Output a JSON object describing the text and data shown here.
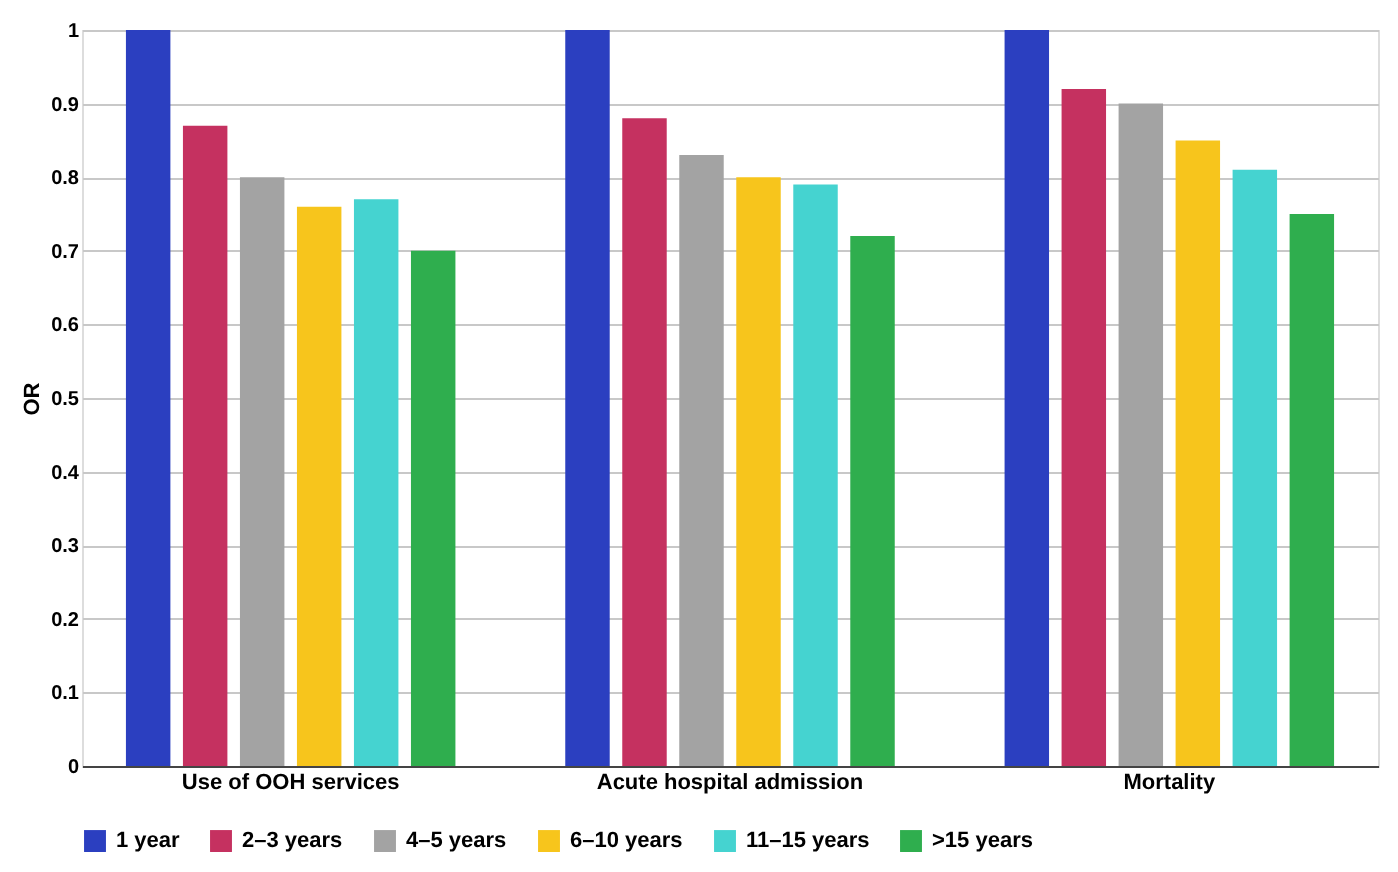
{
  "chart_data": {
    "type": "bar",
    "ylabel": "OR",
    "categories": [
      "Use of OOH services",
      "Acute hospital admission",
      "Mortality"
    ],
    "series": [
      {
        "name": "1 year",
        "color": "#2b3fc0",
        "values": [
          1,
          1,
          1
        ]
      },
      {
        "name": "2–3 years",
        "color": "#c53160",
        "values": [
          0.87,
          0.88,
          0.92
        ]
      },
      {
        "name": "4–5 years",
        "color": "#a3a3a3",
        "values": [
          0.8,
          0.83,
          0.9
        ]
      },
      {
        "name": "6–10 years",
        "color": "#f7c51c",
        "values": [
          0.76,
          0.8,
          0.85
        ]
      },
      {
        "name": "11–15 years",
        "color": "#45d3d0",
        "values": [
          0.77,
          0.79,
          0.81
        ]
      },
      {
        "name": ">15 years",
        "color": "#2fae4e",
        "values": [
          0.7,
          0.72,
          0.75
        ]
      }
    ],
    "ylim": [
      0,
      1
    ],
    "yticks": [
      0,
      0.1,
      0.2,
      0.3,
      0.4,
      0.5,
      0.6,
      0.7,
      0.8,
      0.9,
      1
    ],
    "grid": "y",
    "legend": "bottom"
  }
}
